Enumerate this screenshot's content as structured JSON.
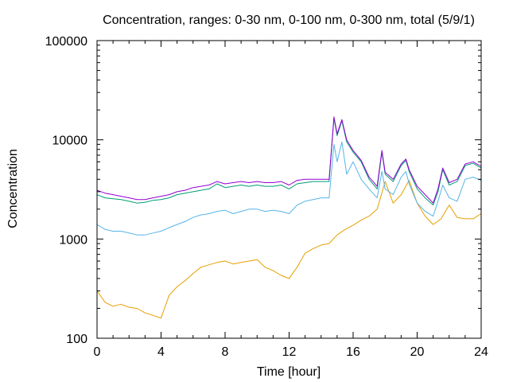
{
  "chart_data": {
    "type": "line",
    "title": "Concentration, ranges: 0-30 nm, 0-100 nm, 0-300 nm, total (5/9/1)",
    "xlabel": "Time [hour]",
    "ylabel": "Concentration",
    "xlim": [
      0,
      24
    ],
    "ylim": [
      100,
      100000
    ],
    "yscale": "log",
    "grid": false,
    "legend": "none",
    "x_ticks": [
      0,
      4,
      8,
      12,
      16,
      20,
      24
    ],
    "x_tick_labels": [
      "0",
      "4",
      "8",
      "12",
      "16",
      "20",
      "24"
    ],
    "y_ticks": [
      100,
      1000,
      10000,
      100000
    ],
    "y_tick_labels": [
      "100",
      "1000",
      "10000",
      "100000"
    ],
    "series": [
      {
        "color": "#e69f00",
        "x": [
          0,
          0.5,
          1,
          1.5,
          2,
          2.5,
          3,
          3.5,
          4,
          4.5,
          5,
          5.5,
          6,
          6.5,
          7,
          7.5,
          8,
          8.5,
          9,
          9.5,
          10,
          10.5,
          11,
          11.5,
          12,
          12.5,
          13,
          13.5,
          14,
          14.5,
          15,
          15.5,
          16,
          16.5,
          17,
          17.5,
          18,
          18.5,
          19,
          19.5,
          20,
          20.5,
          21,
          21.5,
          22,
          22.5,
          23,
          23.5,
          24
        ],
        "y": [
          300,
          230,
          210,
          220,
          205,
          200,
          180,
          170,
          160,
          270,
          330,
          380,
          450,
          520,
          550,
          580,
          600,
          560,
          580,
          600,
          620,
          520,
          480,
          430,
          400,
          520,
          720,
          800,
          870,
          900,
          1100,
          1250,
          1380,
          1550,
          1700,
          2000,
          3800,
          2300,
          2800,
          3900,
          2300,
          1700,
          1400,
          1600,
          2200,
          1650,
          1600,
          1600,
          1800
        ]
      },
      {
        "color": "#56b4e9",
        "x": [
          0,
          0.5,
          1,
          1.5,
          2,
          2.5,
          3,
          3.5,
          4,
          4.5,
          5,
          5.5,
          6,
          6.5,
          7,
          7.5,
          8,
          8.5,
          9,
          9.5,
          10,
          10.5,
          11,
          11.5,
          12,
          12.5,
          13,
          13.5,
          14,
          14.5,
          14.8,
          15,
          15.3,
          15.6,
          16,
          16.5,
          17,
          17.5,
          17.8,
          18,
          18.5,
          19,
          19.3,
          19.5,
          20,
          20.5,
          21,
          21.3,
          21.6,
          22,
          22.5,
          23,
          23.5,
          24
        ],
        "y": [
          1400,
          1250,
          1200,
          1200,
          1150,
          1100,
          1100,
          1150,
          1200,
          1300,
          1400,
          1500,
          1650,
          1750,
          1800,
          1900,
          1950,
          1800,
          1900,
          2000,
          2000,
          1900,
          1950,
          1900,
          1800,
          2200,
          2400,
          2500,
          2600,
          2600,
          9000,
          6000,
          9500,
          4500,
          6000,
          4000,
          3200,
          2600,
          4800,
          3200,
          2800,
          4200,
          4800,
          3600,
          2300,
          1900,
          1700,
          2400,
          3500,
          2600,
          2400,
          4000,
          4200,
          3900
        ]
      },
      {
        "color": "#009e73",
        "x": [
          0,
          0.5,
          1,
          1.5,
          2,
          2.5,
          3,
          3.5,
          4,
          4.5,
          5,
          5.5,
          6,
          6.5,
          7,
          7.5,
          8,
          8.5,
          9,
          9.5,
          10,
          10.5,
          11,
          11.5,
          12,
          12.5,
          13,
          13.5,
          14,
          14.5,
          14.8,
          15,
          15.3,
          15.6,
          16,
          16.5,
          17,
          17.5,
          17.8,
          18,
          18.5,
          19,
          19.3,
          19.5,
          20,
          20.5,
          21,
          21.3,
          21.6,
          22,
          22.5,
          23,
          23.5,
          24
        ],
        "y": [
          2800,
          2600,
          2550,
          2500,
          2400,
          2300,
          2350,
          2450,
          2500,
          2600,
          2800,
          2900,
          3000,
          3100,
          3200,
          3600,
          3300,
          3400,
          3500,
          3400,
          3500,
          3400,
          3400,
          3500,
          3200,
          3600,
          3700,
          3800,
          3800,
          3800,
          16500,
          11000,
          15500,
          9500,
          7500,
          6000,
          4000,
          3200,
          7500,
          4500,
          3800,
          5500,
          6200,
          4800,
          3200,
          2600,
          2200,
          3000,
          5000,
          3500,
          3800,
          5500,
          5800,
          5200
        ]
      },
      {
        "color": "#9400d3",
        "x": [
          0,
          0.5,
          1,
          1.5,
          2,
          2.5,
          3,
          3.5,
          4,
          4.5,
          5,
          5.5,
          6,
          6.5,
          7,
          7.5,
          8,
          8.5,
          9,
          9.5,
          10,
          10.5,
          11,
          11.5,
          12,
          12.5,
          13,
          13.5,
          14,
          14.5,
          14.8,
          15,
          15.3,
          15.6,
          16,
          16.5,
          17,
          17.5,
          17.8,
          18,
          18.5,
          19,
          19.3,
          19.5,
          20,
          20.5,
          21,
          21.3,
          21.6,
          22,
          22.5,
          23,
          23.5,
          24
        ],
        "y": [
          3100,
          2900,
          2800,
          2700,
          2600,
          2500,
          2500,
          2600,
          2700,
          2800,
          3000,
          3100,
          3300,
          3400,
          3500,
          3800,
          3600,
          3700,
          3800,
          3700,
          3800,
          3700,
          3700,
          3800,
          3500,
          3900,
          4000,
          4000,
          4000,
          4000,
          17000,
          11500,
          16000,
          10000,
          7800,
          6200,
          4200,
          3400,
          7800,
          4700,
          4000,
          5700,
          6400,
          5000,
          3400,
          2800,
          2300,
          3200,
          5200,
          3700,
          4000,
          5700,
          6000,
          5400
        ]
      }
    ]
  }
}
